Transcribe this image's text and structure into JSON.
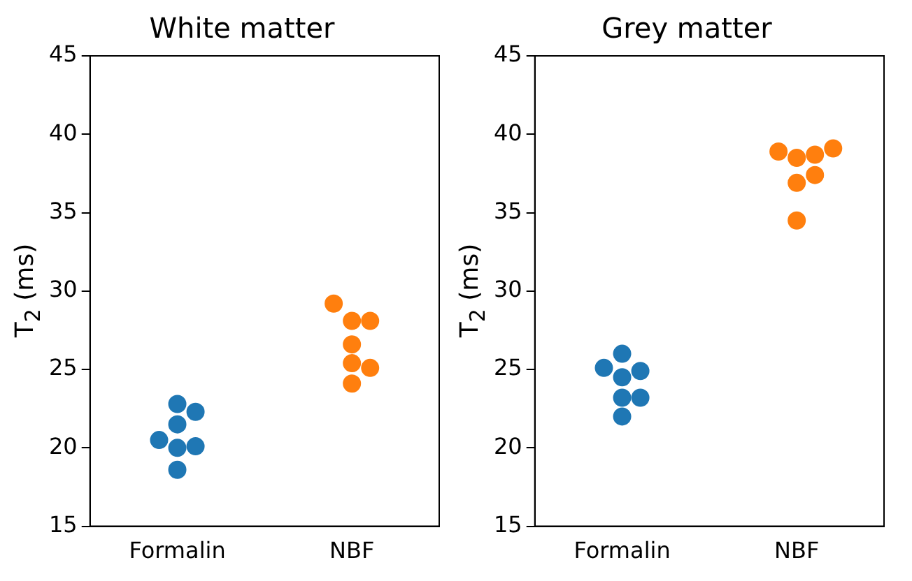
{
  "chart_data": [
    {
      "type": "scatter",
      "title": "White matter",
      "ylabel": "T$_{2}$ (ms)",
      "categories": [
        "Formalin",
        "NBF"
      ],
      "ylim": [
        15,
        45
      ],
      "yticks": [
        15,
        20,
        25,
        30,
        35,
        40,
        45
      ],
      "grid": false,
      "legend": false,
      "marker": "circle",
      "series": [
        {
          "color": "#1f77b4",
          "x": [
            "Formalin",
            "Formalin",
            "Formalin",
            "Formalin",
            "Formalin",
            "Formalin",
            "Formalin"
          ],
          "values": [
            18.6,
            20.0,
            20.1,
            20.5,
            21.5,
            22.3,
            22.8
          ]
        },
        {
          "color": "#ff7f0e",
          "x": [
            "NBF",
            "NBF",
            "NBF",
            "NBF",
            "NBF",
            "NBF",
            "NBF"
          ],
          "values": [
            24.1,
            25.1,
            25.4,
            26.6,
            28.1,
            28.1,
            29.2
          ]
        }
      ]
    },
    {
      "type": "scatter",
      "title": "Grey matter",
      "ylabel": "T$_{2}$ (ms)",
      "categories": [
        "Formalin",
        "NBF"
      ],
      "ylim": [
        15,
        45
      ],
      "yticks": [
        15,
        20,
        25,
        30,
        35,
        40,
        45
      ],
      "grid": false,
      "legend": false,
      "marker": "circle",
      "series": [
        {
          "color": "#1f77b4",
          "x": [
            "Formalin",
            "Formalin",
            "Formalin",
            "Formalin",
            "Formalin",
            "Formalin",
            "Formalin"
          ],
          "values": [
            22.0,
            23.2,
            23.2,
            24.5,
            24.9,
            25.1,
            26.0
          ]
        },
        {
          "color": "#ff7f0e",
          "x": [
            "NBF",
            "NBF",
            "NBF",
            "NBF",
            "NBF",
            "NBF",
            "NBF"
          ],
          "values": [
            34.5,
            36.9,
            37.4,
            38.5,
            38.7,
            38.9,
            39.1
          ]
        }
      ]
    }
  ]
}
